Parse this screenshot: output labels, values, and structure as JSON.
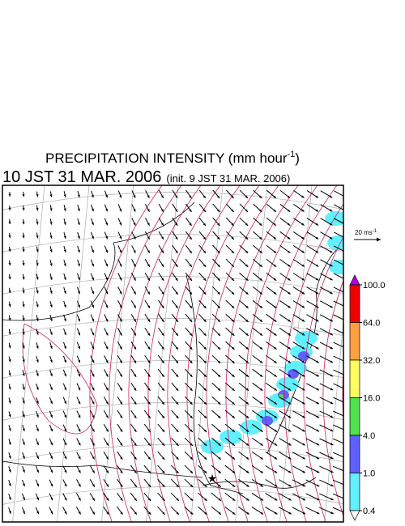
{
  "title": {
    "text": "PRECIPITATION INTENSITY (mm hour",
    "sup": "-1",
    "close": ")"
  },
  "subtitle": {
    "time": "10 JST 31 MAR. 2006",
    "init": "(init. 9 JST 31 MAR. 2006)"
  },
  "wind_scale": {
    "text": "20 ms",
    "sup": "-1"
  },
  "colorbar": {
    "ticks": [
      {
        "value": 100,
        "label": "100.0"
      },
      {
        "value": 64,
        "label": "64.0"
      },
      {
        "value": 32,
        "label": "32.0"
      },
      {
        "value": 16,
        "label": "16.0"
      },
      {
        "value": 4,
        "label": "4.0"
      },
      {
        "value": 1,
        "label": "1.0"
      },
      {
        "value": 0.4,
        "label": "0.4"
      }
    ],
    "colors": [
      "#b000e0",
      "#f00000",
      "#ffa040",
      "#ffff60",
      "#50e050",
      "#6060ff",
      "#60f0ff",
      "#ffffff"
    ]
  }
}
